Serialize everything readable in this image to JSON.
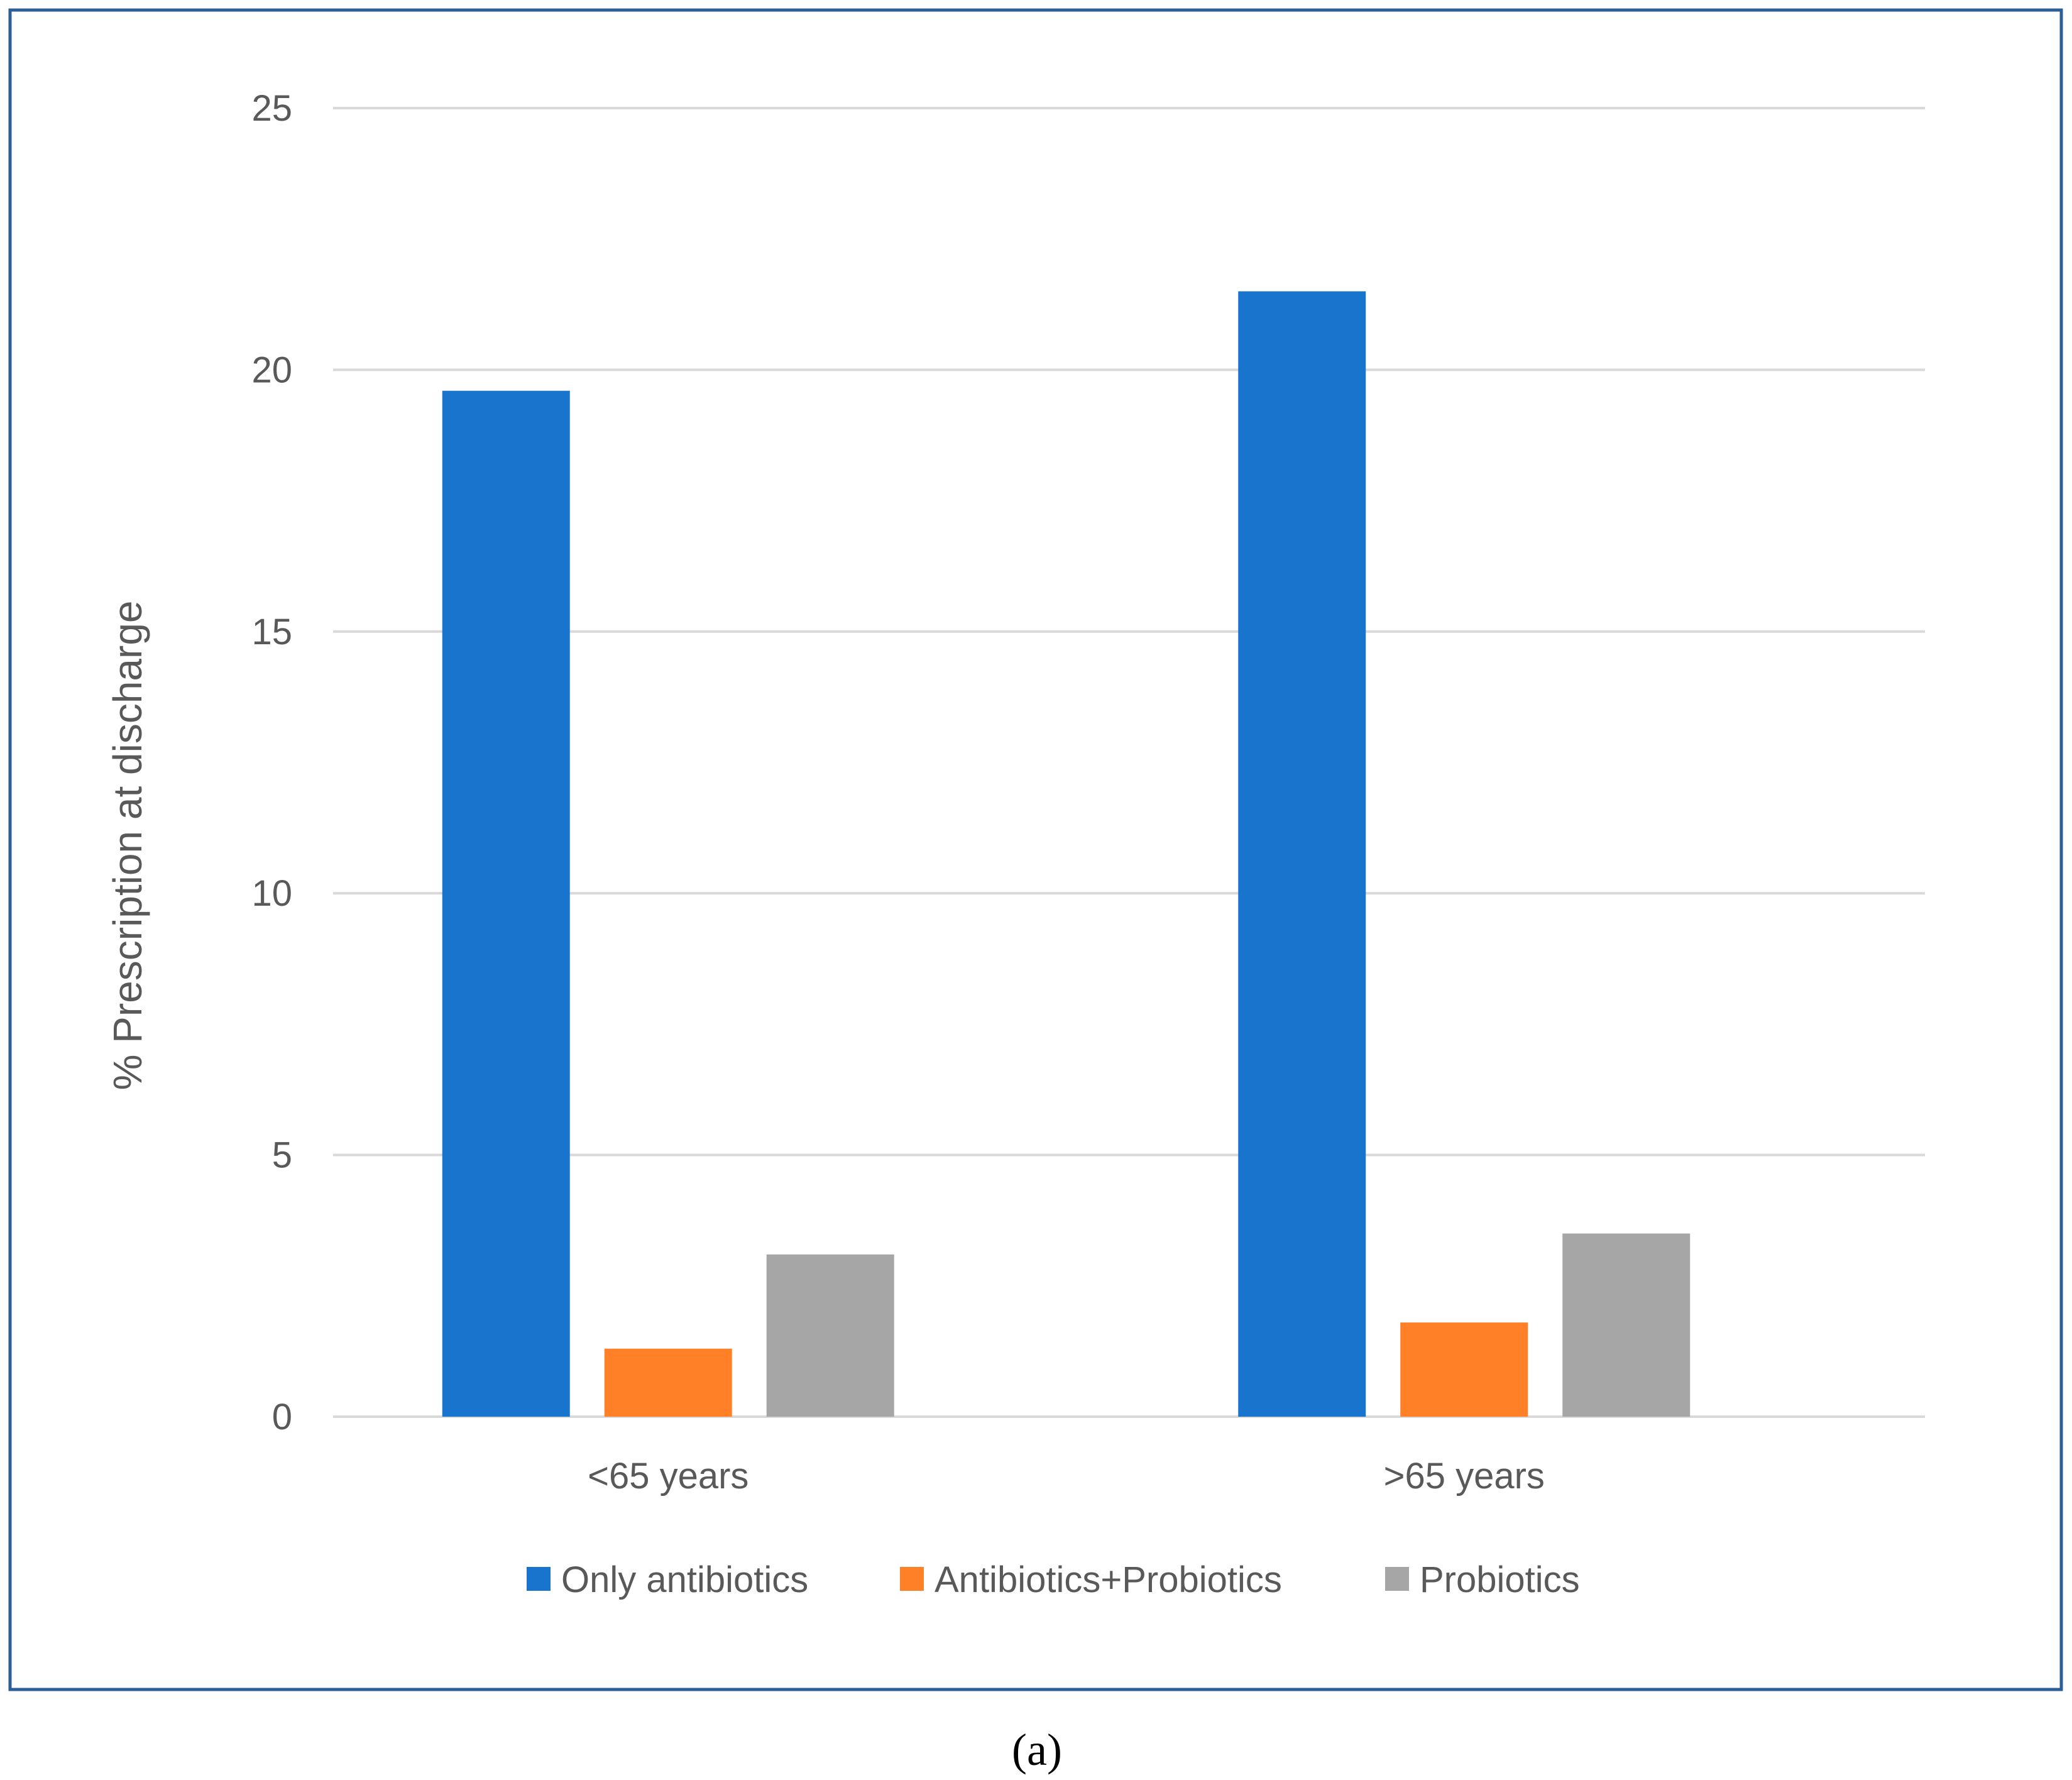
{
  "chart_data": {
    "type": "bar",
    "categories": [
      "<65 years",
      ">65 years"
    ],
    "series": [
      {
        "name": "Only antibiotics",
        "color": "#1874CD",
        "values": [
          19.6,
          21.5
        ]
      },
      {
        "name": "Antibiotics+Probiotics",
        "color": "#FF8027",
        "values": [
          1.3,
          1.8
        ]
      },
      {
        "name": "Probiotics",
        "color": "#A6A6A6",
        "values": [
          3.1,
          3.5
        ]
      }
    ],
    "ylabel": "% Prescription at discharge",
    "ylim": [
      0,
      25
    ],
    "yticks": [
      0,
      5,
      10,
      15,
      20,
      25
    ],
    "grid": true,
    "legend_position": "bottom",
    "frame_color": "#2E5E9A"
  },
  "caption": "(a)"
}
